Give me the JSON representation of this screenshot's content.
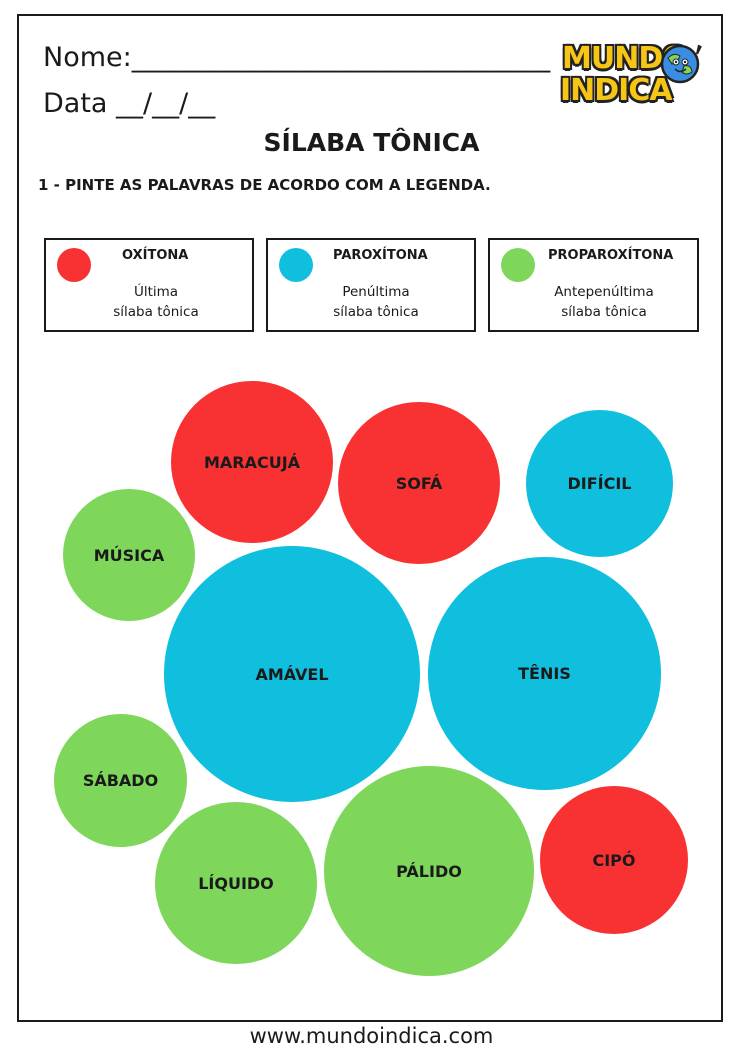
{
  "header": {
    "name_line": "Nome:_______________________________",
    "date_line": "Data __/__/__"
  },
  "logo": {
    "line1": "MUNDO",
    "line2": "INDICA",
    "icon": "globe-mascot-icon"
  },
  "title": "SÍLABA TÔNICA",
  "instruction": "1 - PINTE AS PALAVRAS DE ACORDO COM A LEGENDA.",
  "legend": [
    {
      "label": "OXÍTONA",
      "description": "Última\nsílaba tônica",
      "color": "#f83232"
    },
    {
      "label": "PAROXÍTONA",
      "description": "Penúltima\nsílaba tônica",
      "color": "#0fbfdd"
    },
    {
      "label": "PROPAROXÍTONA",
      "description": "Antepenúltima\nsílaba tônica",
      "color": "#7ed75a"
    }
  ],
  "colors": {
    "red": "#f83232",
    "blue": "#0fbfdd",
    "green": "#7ed75a"
  },
  "words": [
    {
      "word": "MARACUJÁ",
      "color": "#f83232"
    },
    {
      "word": "SOFÁ",
      "color": "#f83232"
    },
    {
      "word": "DIFÍCIL",
      "color": "#0fbfdd"
    },
    {
      "word": "MÚSICA",
      "color": "#7ed75a"
    },
    {
      "word": "AMÁVEL",
      "color": "#0fbfdd"
    },
    {
      "word": "TÊNIS",
      "color": "#0fbfdd"
    },
    {
      "word": "SÁBADO",
      "color": "#7ed75a"
    },
    {
      "word": "LÍQUIDO",
      "color": "#7ed75a"
    },
    {
      "word": "PÁLIDO",
      "color": "#7ed75a"
    },
    {
      "word": "CIPÓ",
      "color": "#f83232"
    }
  ],
  "footer": "www.mundoindica.com"
}
